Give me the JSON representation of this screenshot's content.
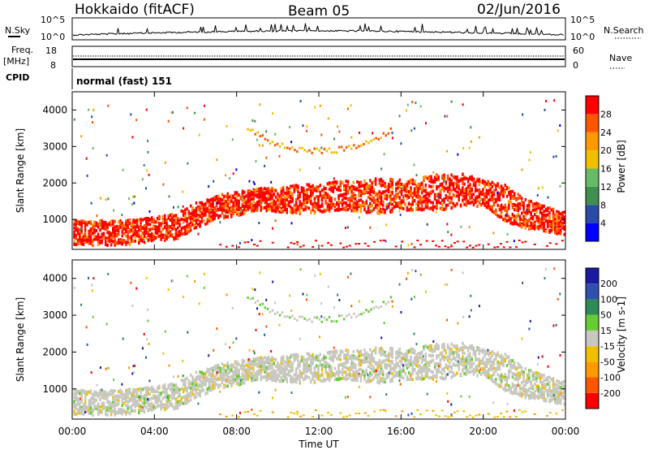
{
  "header": {
    "station": "Hokkaido (fitACF)",
    "beam": "Beam 05",
    "date": "02/Jun/2016"
  },
  "top_panels": {
    "nsky_label": "N.Sky",
    "nsky_ticks": [
      "10^5",
      "10^0"
    ],
    "nsearch_label": "N.Search",
    "nsearch_ticks": [
      "10^5",
      "10^0"
    ],
    "freq_label": "Freq.",
    "freq_unit": "[MHz]",
    "freq_ticks": [
      "18",
      "8"
    ],
    "nave_label": "Nave",
    "nave_ticks": [
      "60",
      "0"
    ],
    "cpid_label": "CPID",
    "cpid_value": "normal (fast) 151"
  },
  "colors": {
    "power_scale": [
      "#0000ff",
      "#2a4aa8",
      "#3f8f4f",
      "#66bb66",
      "#f0c000",
      "#ff9900",
      "#ff5500",
      "#ff0000"
    ],
    "velocity_scale": [
      "#ff0000",
      "#ff5500",
      "#ff9900",
      "#f0c000",
      "#c8c8c0",
      "#66cc33",
      "#2e8b57",
      "#3050b0",
      "#1a1aa0"
    ],
    "bg": "#ffffff"
  },
  "chart_data": [
    {
      "type": "heatmap",
      "name": "power",
      "ylabel": "Slant Range [km]",
      "colorbar_label": "Power [dB]",
      "colorbar_ticks": [
        "4",
        "8",
        "12",
        "16",
        "20",
        "24",
        "28"
      ],
      "ylim": [
        180,
        4500
      ],
      "y_ticks": [
        "1000",
        "2000",
        "3000",
        "4000"
      ],
      "x_ticks": [
        "00:00",
        "04:00",
        "08:00",
        "12:00",
        "16:00",
        "20:00",
        "00:00"
      ],
      "scatter_bands": [
        {
          "t": [
            0,
            1,
            2,
            3,
            4,
            5,
            6,
            7,
            8,
            9,
            10,
            11,
            12,
            13,
            14,
            15,
            16,
            17,
            18,
            19,
            20,
            21,
            22,
            23,
            24
          ],
          "lo": [
            350,
            330,
            330,
            380,
            450,
            500,
            800,
            1050,
            1150,
            1300,
            1250,
            1200,
            1250,
            1300,
            1250,
            1200,
            1300,
            1300,
            1300,
            1400,
            1400,
            1000,
            800,
            700,
            600
          ],
          "hi": [
            1050,
            1000,
            1000,
            1050,
            1100,
            1200,
            1500,
            1700,
            1800,
            1900,
            1900,
            2000,
            2000,
            2100,
            2100,
            2200,
            2150,
            2200,
            2300,
            2300,
            2100,
            2000,
            1600,
            1400,
            1250
          ]
        }
      ]
    },
    {
      "type": "heatmap",
      "name": "velocity",
      "ylabel": "Slant Range [km]",
      "xlabel": "Time UT",
      "colorbar_label": "Velocity [m s-1]",
      "colorbar_ticks": [
        "-200",
        "-100",
        "-50",
        "-15",
        "15",
        "50",
        "100",
        "200"
      ],
      "ylim": [
        180,
        4500
      ],
      "y_ticks": [
        "1000",
        "2000",
        "3000",
        "4000"
      ],
      "x_ticks": [
        "00:00",
        "04:00",
        "08:00",
        "12:00",
        "16:00",
        "20:00",
        "00:00"
      ]
    }
  ]
}
